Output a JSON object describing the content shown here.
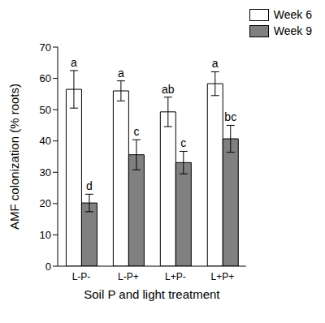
{
  "chart_data": {
    "type": "bar",
    "categories": [
      "L-P-",
      "L-P+",
      "L+P-",
      "L+P+"
    ],
    "x_label": "Soil P and light treatment",
    "y_label": "AMF colonization (% roots)",
    "ylim": [
      0,
      70
    ],
    "yticks": [
      0,
      10,
      20,
      30,
      40,
      50,
      60,
      70
    ],
    "grid": false,
    "legend": "top-right",
    "series": [
      {
        "name": "Week 6",
        "color": "#ffffff",
        "values": [
          56.5,
          56.0,
          49.3,
          58.3
        ],
        "errors": [
          6.0,
          3.2,
          4.7,
          3.8
        ],
        "letters": [
          "a",
          "a",
          "ab",
          "a"
        ]
      },
      {
        "name": "Week 9",
        "color": "#808080",
        "values": [
          20.2,
          35.6,
          33.1,
          40.7
        ],
        "errors": [
          2.8,
          4.8,
          3.6,
          4.3
        ],
        "letters": [
          "d",
          "c",
          "c",
          "bc"
        ]
      }
    ]
  }
}
